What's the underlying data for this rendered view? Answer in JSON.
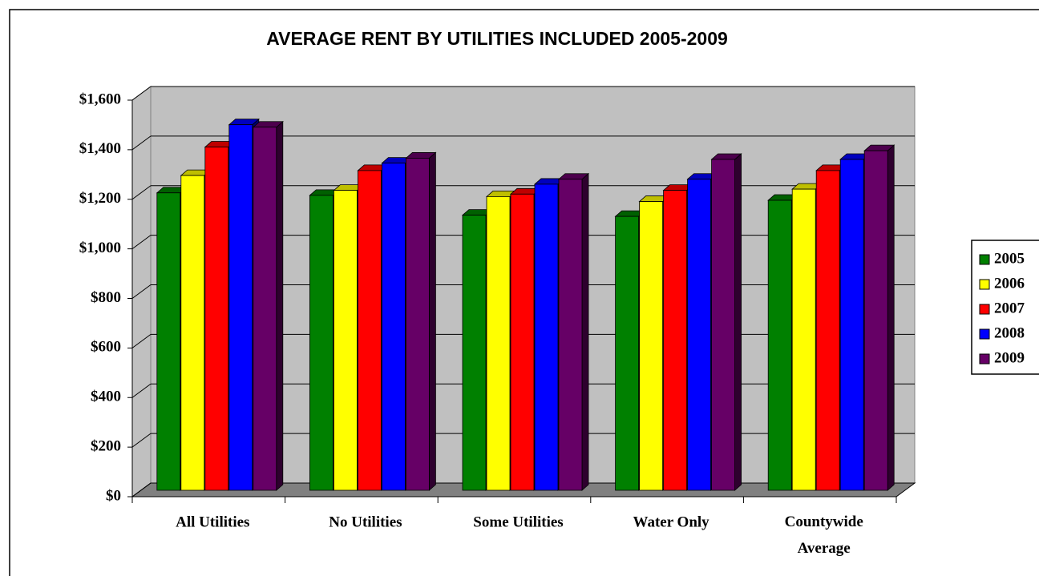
{
  "chart_data": {
    "type": "bar3d",
    "title": "AVERAGE RENT BY UTILITIES INCLUDED 2005-2009",
    "categories": [
      "All Utilities",
      "No Utilities",
      "Some Utilities",
      "Water Only",
      "Countywide Average"
    ],
    "series": [
      {
        "name": "2005",
        "color": "#008000",
        "values": [
          1200,
          1190,
          1110,
          1105,
          1170
        ]
      },
      {
        "name": "2006",
        "color": "#ffff00",
        "values": [
          1270,
          1210,
          1185,
          1165,
          1215
        ]
      },
      {
        "name": "2007",
        "color": "#ff0000",
        "values": [
          1385,
          1290,
          1195,
          1210,
          1290
        ]
      },
      {
        "name": "2008",
        "color": "#0000ff",
        "values": [
          1475,
          1320,
          1235,
          1255,
          1335
        ]
      },
      {
        "name": "2009",
        "color": "#660066",
        "values": [
          1465,
          1340,
          1255,
          1335,
          1370
        ]
      }
    ],
    "ylim": [
      0,
      1600
    ],
    "yticks": [
      {
        "value": 0,
        "label": "$0"
      },
      {
        "value": 200,
        "label": "$200"
      },
      {
        "value": 400,
        "label": "$400"
      },
      {
        "value": 600,
        "label": "$600"
      },
      {
        "value": 800,
        "label": "$800"
      },
      {
        "value": 1000,
        "label": "$1,000"
      },
      {
        "value": 1200,
        "label": "$1,200"
      },
      {
        "value": 1400,
        "label": "$1,400"
      },
      {
        "value": 1600,
        "label": "$1,600"
      }
    ],
    "grid": true,
    "legend": "right"
  }
}
